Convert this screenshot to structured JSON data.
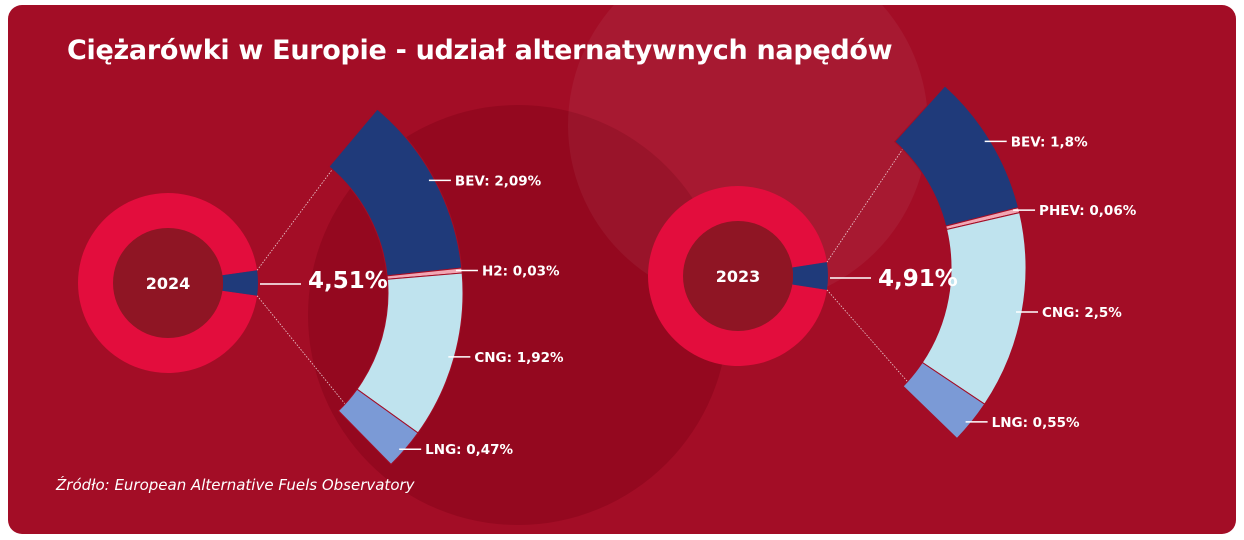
{
  "title": "Ciężarówki w Europie - udział alternatywnych napędów",
  "source": "Źródło: European Alternative Fuels Observatory",
  "colors": {
    "background": "#a30d26",
    "ring": "#e30d3d",
    "center": "#8f1524",
    "others": "#e30d3d",
    "BEV": "#1f3a7a",
    "H2": "#f2a7b4",
    "PHEV": "#f2a7b4",
    "CNG": "#bfe3ee",
    "LNG": "#7b9ad6"
  },
  "chart_data": [
    {
      "type": "pie",
      "year": "2024",
      "total_label": "4,51%",
      "total": 4.51,
      "segments": [
        {
          "name": "BEV",
          "value": 2.09,
          "label": "BEV: 2,09%"
        },
        {
          "name": "H2",
          "value": 0.03,
          "label": "H2: 0,03%"
        },
        {
          "name": "CNG",
          "value": 1.92,
          "label": "CNG: 1,92%"
        },
        {
          "name": "LNG",
          "value": 0.47,
          "label": "LNG: 0,47%"
        }
      ]
    },
    {
      "type": "pie",
      "year": "2023",
      "total_label": "4,91%",
      "total": 4.91,
      "segments": [
        {
          "name": "BEV",
          "value": 1.8,
          "label": "BEV: 1,8%"
        },
        {
          "name": "PHEV",
          "value": 0.06,
          "label": "PHEV: 0,06%"
        },
        {
          "name": "CNG",
          "value": 2.5,
          "label": "CNG: 2,5%"
        },
        {
          "name": "LNG",
          "value": 0.55,
          "label": "LNG: 0,55%"
        }
      ]
    }
  ]
}
